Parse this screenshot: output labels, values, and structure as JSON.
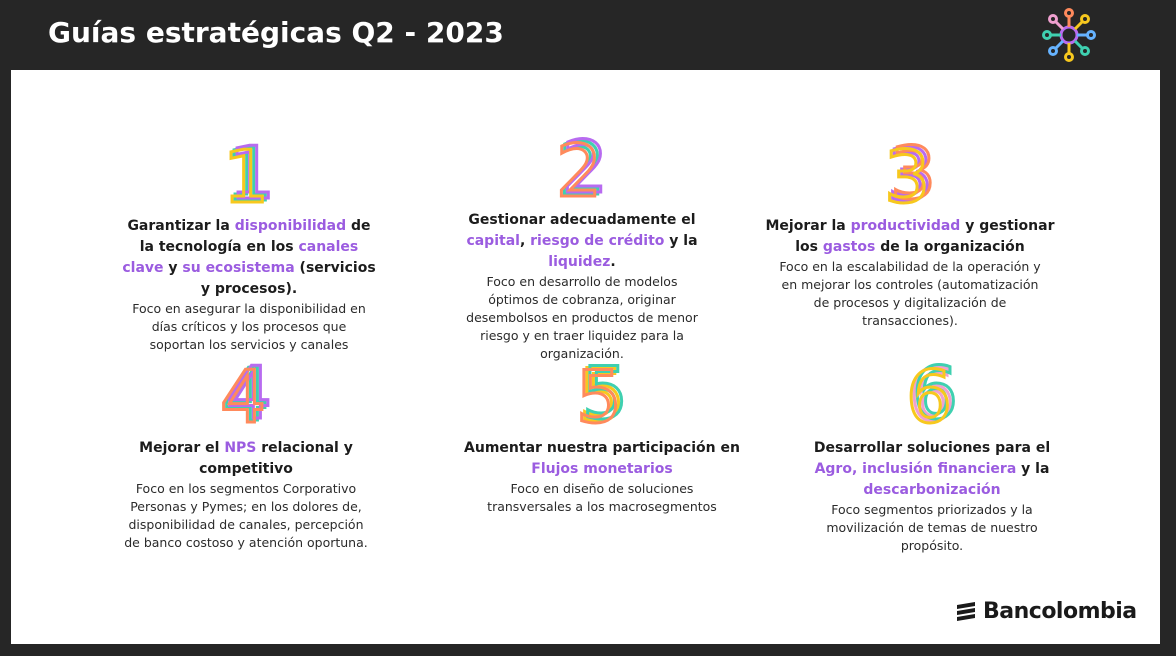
{
  "header": {
    "title": "Guías estratégicas Q2 - 2023"
  },
  "items": [
    {
      "number": "1",
      "heading": [
        {
          "t": "Garantizar la ",
          "h": false
        },
        {
          "t": "disponibilidad",
          "h": true
        },
        {
          "t": " de la tecnología en los ",
          "h": false
        },
        {
          "t": "canales clave",
          "h": true
        },
        {
          "t": " y ",
          "h": false
        },
        {
          "t": "su ecosistema",
          "h": true
        },
        {
          "t": " (servicios y procesos).",
          "h": false
        }
      ],
      "description": "Foco en asegurar la disponibilidad en días críticos y los procesos que soportan los servicios y canales"
    },
    {
      "number": "2",
      "heading": [
        {
          "t": "Gestionar adecuadamente el ",
          "h": false
        },
        {
          "t": "capital",
          "h": true
        },
        {
          "t": ", ",
          "h": false
        },
        {
          "t": "riesgo de crédito",
          "h": true
        },
        {
          "t": " y la ",
          "h": false
        },
        {
          "t": "liquidez",
          "h": true
        },
        {
          "t": ".",
          "h": false
        }
      ],
      "description": "Foco en desarrollo de modelos óptimos de cobranza, originar desembolsos en productos de menor riesgo y en traer liquidez para la organización."
    },
    {
      "number": "3",
      "heading": [
        {
          "t": "Mejorar la ",
          "h": false
        },
        {
          "t": "productividad",
          "h": true
        },
        {
          "t": " y gestionar los ",
          "h": false
        },
        {
          "t": "gastos",
          "h": true
        },
        {
          "t": " de la organización",
          "h": false
        }
      ],
      "description": "Foco en la escalabilidad de la operación y en mejorar los controles (automatización de procesos y digitalización de transacciones)."
    },
    {
      "number": "4",
      "heading": [
        {
          "t": "Mejorar el ",
          "h": false
        },
        {
          "t": "NPS",
          "h": true
        },
        {
          "t": " relacional y competitivo",
          "h": false
        }
      ],
      "description": "Foco en los segmentos Corporativo Personas y Pymes; en los dolores de, disponibilidad de canales, percepción de banco costoso y atención oportuna."
    },
    {
      "number": "5",
      "heading": [
        {
          "t": "Aumentar nuestra participación en ",
          "h": false
        },
        {
          "t": "Flujos monetarios",
          "h": true
        }
      ],
      "description": "Foco en diseño de soluciones transversales a los macrosegmentos"
    },
    {
      "number": "6",
      "heading": [
        {
          "t": "Desarrollar soluciones para el ",
          "h": false
        },
        {
          "t": "Agro,",
          "h": true
        },
        {
          "t": " ",
          "h": false
        },
        {
          "t": "inclusión financiera",
          "h": true
        },
        {
          "t": " y la ",
          "h": false
        },
        {
          "t": "descarbonización",
          "h": true
        }
      ],
      "description": "Foco segmentos priorizados y la movilización de temas de nuestro propósito."
    }
  ],
  "brand": {
    "name": "Bancolombia"
  },
  "colors": {
    "highlight": "#9b5ce0",
    "number_strokes": [
      "#f7c81e",
      "#b86bf0",
      "#3fd0b0",
      "#ff8a5c",
      "#66b3ff",
      "#f0a0d0"
    ]
  }
}
